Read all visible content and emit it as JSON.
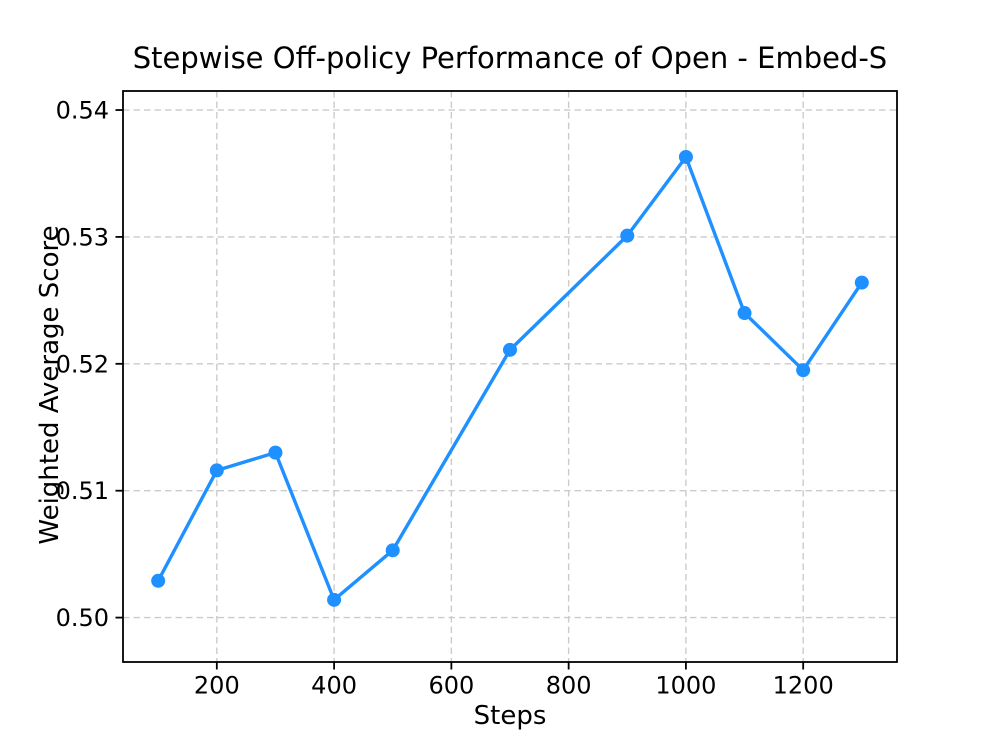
{
  "colors": {
    "line": "#1e90ff",
    "marker": "#1e90ff",
    "grid": "#cbcbcb",
    "axis": "#000000",
    "text": "#000000",
    "background": "#ffffff"
  },
  "chart_data": {
    "type": "line",
    "title": "Stepwise Off-policy Performance of Open - Embed-S",
    "xlabel": "Steps",
    "ylabel": "Weighted Average Score",
    "x": [
      100,
      200,
      300,
      400,
      500,
      700,
      900,
      1000,
      1100,
      1200,
      1300
    ],
    "y": [
      0.5029,
      0.5116,
      0.513,
      0.5014,
      0.5053,
      0.5211,
      0.5301,
      0.5363,
      0.524,
      0.5195,
      0.5264
    ],
    "series_name": "Weighted Average Score",
    "xlim": [
      40,
      1360
    ],
    "ylim": [
      0.4965,
      0.5415
    ],
    "xticks": [
      200,
      400,
      600,
      800,
      1000,
      1200
    ],
    "xtick_labels": [
      "200",
      "400",
      "600",
      "800",
      "1000",
      "1200"
    ],
    "yticks": [
      0.5,
      0.51,
      0.52,
      0.53,
      0.54
    ],
    "ytick_labels": [
      "0.50",
      "0.51",
      "0.52",
      "0.53",
      "0.54"
    ],
    "grid": true,
    "grid_style": "dashed",
    "marker": "circle",
    "legend": "none"
  }
}
